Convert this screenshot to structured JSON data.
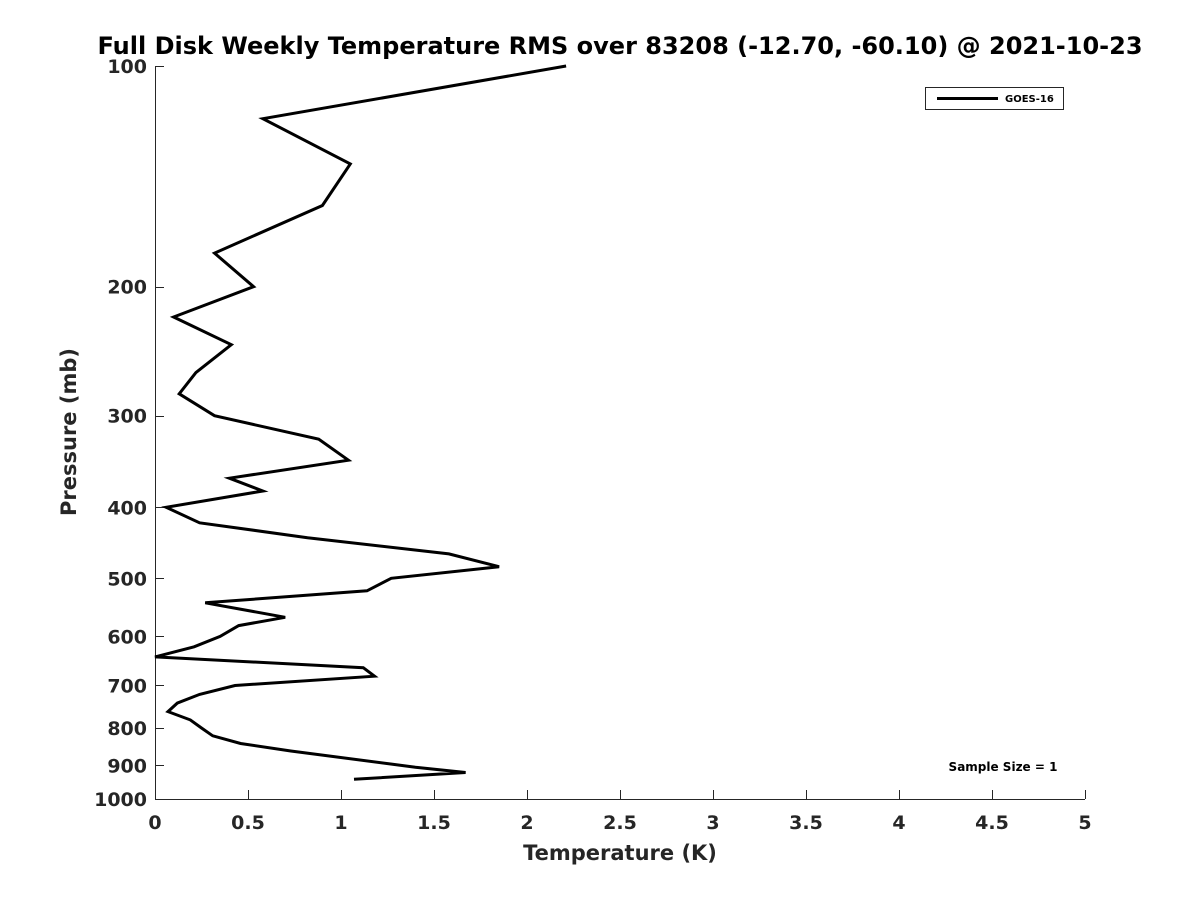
{
  "chart_data": {
    "type": "line",
    "title": "Full Disk Weekly Temperature RMS over 83208 (-12.70, -60.10) @ 2021-10-23",
    "xlabel": "Temperature (K)",
    "ylabel": "Pressure (mb)",
    "xlim": [
      0,
      5
    ],
    "ylim": [
      100,
      1000
    ],
    "y_scale": "log",
    "y_reversed": true,
    "grid": false,
    "legend_position": "top-right",
    "x_ticks": [
      0,
      0.5,
      1,
      1.5,
      2,
      2.5,
      3,
      3.5,
      4,
      4.5,
      5
    ],
    "x_tick_labels": [
      "0",
      "0.5",
      "1",
      "1.5",
      "2",
      "2.5",
      "3",
      "3.5",
      "4",
      "4.5",
      "5"
    ],
    "y_ticks": [
      100,
      200,
      300,
      400,
      500,
      600,
      700,
      800,
      900,
      1000
    ],
    "y_tick_labels": [
      "100",
      "200",
      "300",
      "400",
      "500",
      "600",
      "700",
      "800",
      "900",
      "1000"
    ],
    "series": [
      {
        "name": "GOES-16",
        "color": "#000000",
        "points": [
          [
            2.21,
            100
          ],
          [
            0.58,
            118
          ],
          [
            1.05,
            136
          ],
          [
            0.9,
            155
          ],
          [
            0.32,
            180
          ],
          [
            0.53,
            200
          ],
          [
            0.1,
            220
          ],
          [
            0.41,
            240
          ],
          [
            0.22,
            262
          ],
          [
            0.13,
            280
          ],
          [
            0.32,
            300
          ],
          [
            0.88,
            323
          ],
          [
            1.04,
            345
          ],
          [
            0.4,
            365
          ],
          [
            0.58,
            380
          ],
          [
            0.06,
            400
          ],
          [
            0.24,
            420
          ],
          [
            0.82,
            440
          ],
          [
            1.58,
            463
          ],
          [
            1.85,
            482
          ],
          [
            1.27,
            500
          ],
          [
            1.14,
            520
          ],
          [
            0.27,
            540
          ],
          [
            0.7,
            565
          ],
          [
            0.45,
            580
          ],
          [
            0.35,
            600
          ],
          [
            0.21,
            620
          ],
          [
            0.0,
            640
          ],
          [
            1.12,
            662
          ],
          [
            1.18,
            680
          ],
          [
            0.43,
            700
          ],
          [
            0.24,
            720
          ],
          [
            0.12,
            740
          ],
          [
            0.07,
            760
          ],
          [
            0.19,
            780
          ],
          [
            0.25,
            800
          ],
          [
            0.31,
            820
          ],
          [
            0.46,
            840
          ],
          [
            0.73,
            860
          ],
          [
            1.4,
            905
          ],
          [
            1.67,
            920
          ],
          [
            1.07,
            940
          ]
        ]
      }
    ],
    "annotations": [
      "Sample Size = 1"
    ]
  }
}
